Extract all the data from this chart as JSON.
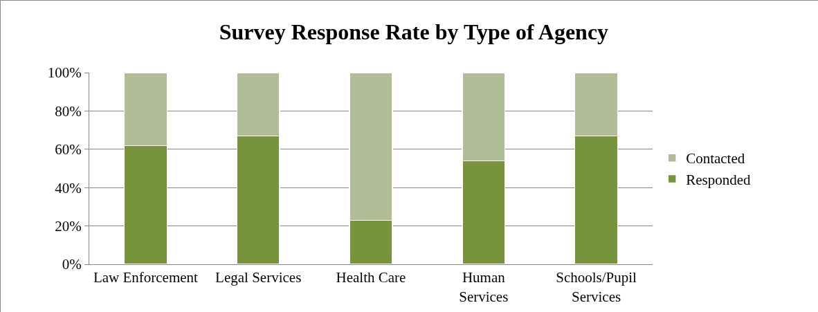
{
  "chart_data": {
    "type": "bar",
    "title": "Survey Response Rate by Type of Agency",
    "categories": [
      "Law Enforcement",
      "Legal Services",
      "Health Care",
      "Human Services",
      "Schools/Pupil Services"
    ],
    "stacked": true,
    "series": [
      {
        "name": "Responded",
        "color": "#77933c",
        "values": [
          62,
          67,
          23,
          54,
          67
        ]
      },
      {
        "name": "Contacted",
        "color": "#b0bd96",
        "values": [
          38,
          33,
          77,
          46,
          33
        ]
      }
    ],
    "ylim": [
      0,
      100
    ],
    "yticks": [
      {
        "value": 0,
        "label": "0%"
      },
      {
        "value": 20,
        "label": "20%"
      },
      {
        "value": 40,
        "label": "40%"
      },
      {
        "value": 60,
        "label": "60%"
      },
      {
        "value": 80,
        "label": "80%"
      },
      {
        "value": 100,
        "label": "100%"
      }
    ],
    "grid": "y",
    "legend": "right"
  }
}
